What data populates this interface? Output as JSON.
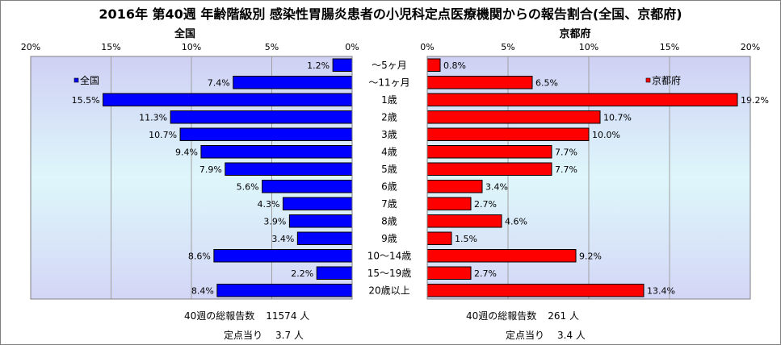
{
  "title": "2016年 第40週 年齢階級別 感染性胃腸炎患者の小児科定点医療機関からの報告割合(全国、京都府)",
  "chart_data": [
    {
      "type": "bar",
      "orientation": "horizontal",
      "direction": "right-to-left",
      "title": "全国",
      "categories": [
        "～5ヶ月",
        "～11ヶ月",
        "1歳",
        "2歳",
        "3歳",
        "4歳",
        "5歳",
        "6歳",
        "7歳",
        "8歳",
        "9歳",
        "10～14歳",
        "15～19歳",
        "20歳以上"
      ],
      "series": [
        {
          "name": "全国",
          "color": "#0000ff",
          "values": [
            1.2,
            7.4,
            15.5,
            11.3,
            10.7,
            9.4,
            7.9,
            5.6,
            4.3,
            3.9,
            3.4,
            8.6,
            2.2,
            8.4
          ]
        }
      ],
      "xlim": [
        0,
        20
      ],
      "xticks": [
        0,
        5,
        10,
        15,
        20
      ],
      "value_suffix": "%",
      "legend": "top-left",
      "grid": true
    },
    {
      "type": "bar",
      "orientation": "horizontal",
      "direction": "left-to-right",
      "title": "京都府",
      "categories": [
        "～5ヶ月",
        "～11ヶ月",
        "1歳",
        "2歳",
        "3歳",
        "4歳",
        "5歳",
        "6歳",
        "7歳",
        "8歳",
        "9歳",
        "10～14歳",
        "15～19歳",
        "20歳以上"
      ],
      "series": [
        {
          "name": "京都府",
          "color": "#ff0000",
          "values": [
            0.8,
            6.5,
            19.2,
            10.7,
            10.0,
            7.7,
            7.7,
            3.4,
            2.7,
            4.6,
            1.5,
            9.2,
            2.7,
            13.4
          ]
        }
      ],
      "xlim": [
        0,
        20
      ],
      "xticks": [
        0,
        5,
        10,
        15,
        20
      ],
      "value_suffix": "%",
      "legend": "top-right",
      "grid": true
    }
  ],
  "footer": {
    "national": {
      "total_label": "40週の総報告数",
      "total_value": "11574 人",
      "per_label": "定点当り",
      "per_value": "3.7 人"
    },
    "kyoto": {
      "total_label": "40週の総報告数",
      "total_value": "261 人",
      "per_label": "定点当り",
      "per_value": "3.4 人"
    }
  }
}
